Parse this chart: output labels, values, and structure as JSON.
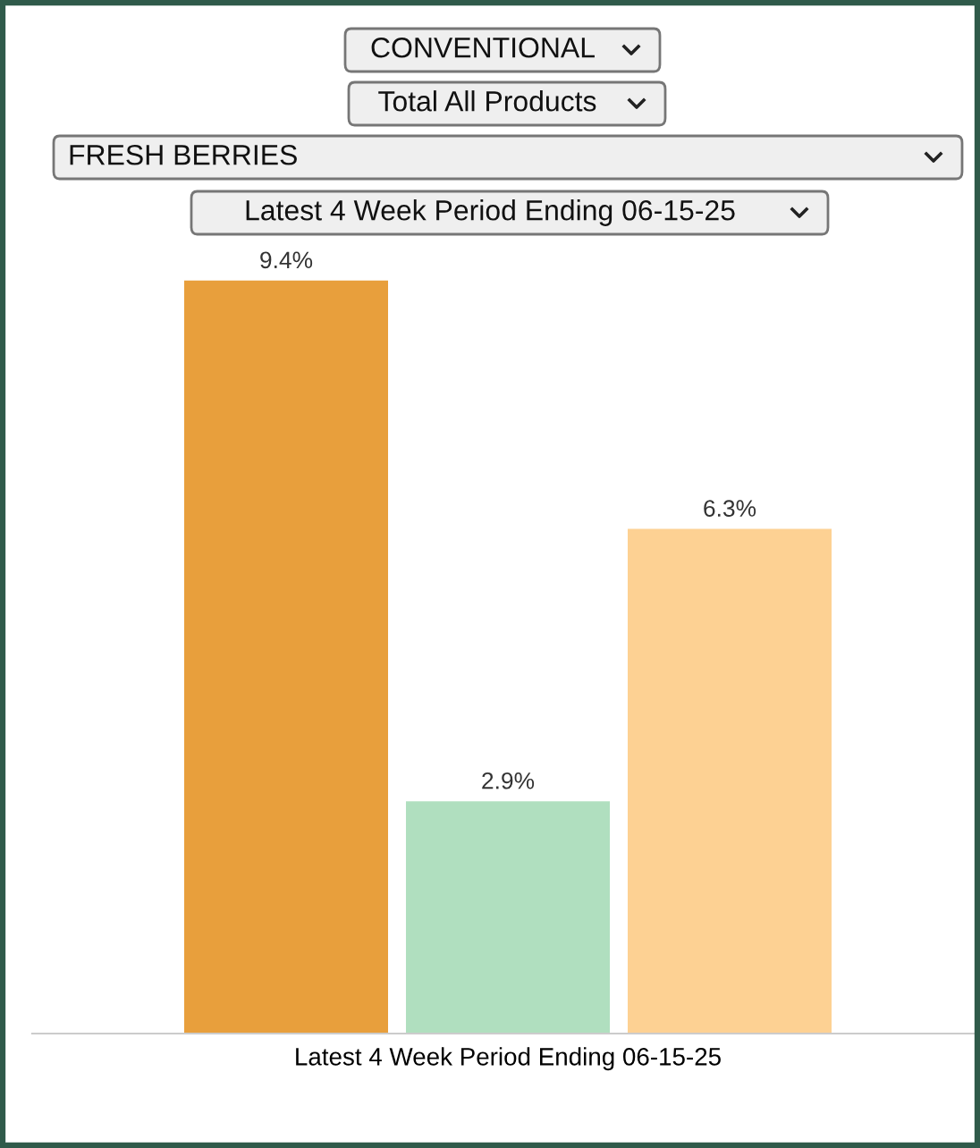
{
  "chart_data": {
    "type": "bar",
    "categories": [
      null,
      null,
      null
    ],
    "values": [
      9.4,
      2.9,
      6.3
    ],
    "colors": [
      "#e89f3c",
      "#b0dfbf",
      "#fdd193"
    ],
    "value_labels": [
      "9.4%",
      "2.9%",
      "6.3%"
    ],
    "xlabel": "Latest 4 Week Period Ending 06-15-25",
    "annotations": [
      "CONVENTIONAL",
      "Total All Products",
      "FRESH BERRIES",
      "Latest 4 Week Period Ending 06-15-25"
    ],
    "grid": false,
    "legend": false
  }
}
